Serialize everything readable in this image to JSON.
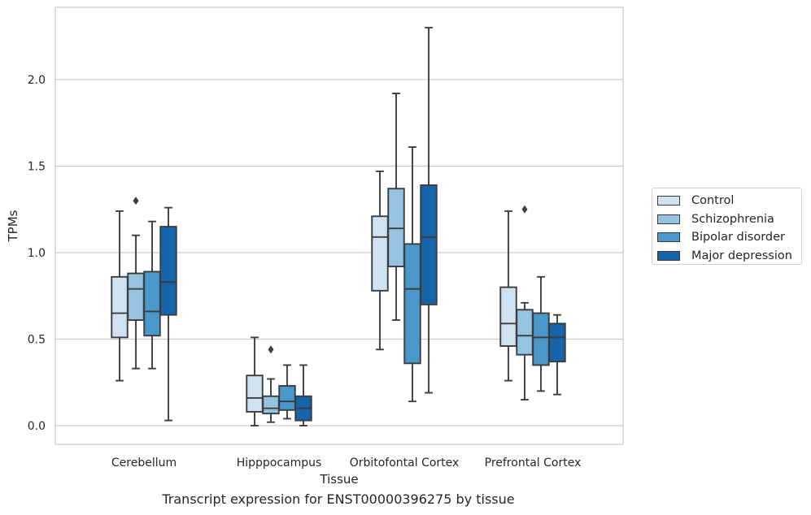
{
  "chart_data": {
    "type": "box",
    "xlabel": "Tissue",
    "ylabel": "TPMs",
    "caption": "Transcript expression for ENST00000396275 by tissue",
    "categories": [
      "Cerebellum",
      "Hipppocampus",
      "Orbitofontal Cortex",
      "Prefrontal Cortex"
    ],
    "ylim": [
      -0.11,
      2.42
    ],
    "yticks": [
      0.0,
      0.5,
      1.0,
      1.5,
      2.0
    ],
    "ytick_labels": [
      "0.0",
      "0.5",
      "1.0",
      "1.5",
      "2.0"
    ],
    "grid": "horizontal",
    "legend_position": "right",
    "series": [
      {
        "name": "Control",
        "color": "#d0e1f2",
        "boxes": [
          {
            "whislo": 0.26,
            "q1": 0.51,
            "med": 0.65,
            "q3": 0.86,
            "whishi": 1.24,
            "fliers": []
          },
          {
            "whislo": 0.0,
            "q1": 0.08,
            "med": 0.16,
            "q3": 0.29,
            "whishi": 0.51,
            "fliers": []
          },
          {
            "whislo": 0.44,
            "q1": 0.78,
            "med": 1.09,
            "q3": 1.21,
            "whishi": 1.47,
            "fliers": []
          },
          {
            "whislo": 0.26,
            "q1": 0.46,
            "med": 0.59,
            "q3": 0.8,
            "whishi": 1.24,
            "fliers": []
          }
        ]
      },
      {
        "name": "Schizophrenia",
        "color": "#94c4df",
        "boxes": [
          {
            "whislo": 0.33,
            "q1": 0.61,
            "med": 0.79,
            "q3": 0.88,
            "whishi": 1.1,
            "fliers": [
              1.3
            ]
          },
          {
            "whislo": 0.02,
            "q1": 0.07,
            "med": 0.1,
            "q3": 0.17,
            "whishi": 0.27,
            "fliers": [
              0.44
            ]
          },
          {
            "whislo": 0.61,
            "q1": 0.92,
            "med": 1.14,
            "q3": 1.37,
            "whishi": 1.92,
            "fliers": []
          },
          {
            "whislo": 0.15,
            "q1": 0.41,
            "med": 0.52,
            "q3": 0.67,
            "whishi": 0.71,
            "fliers": [
              1.25
            ]
          }
        ]
      },
      {
        "name": "Bipolar disorder",
        "color": "#4a98c9",
        "boxes": [
          {
            "whislo": 0.33,
            "q1": 0.52,
            "med": 0.66,
            "q3": 0.89,
            "whishi": 1.18,
            "fliers": []
          },
          {
            "whislo": 0.04,
            "q1": 0.09,
            "med": 0.14,
            "q3": 0.23,
            "whishi": 0.35,
            "fliers": []
          },
          {
            "whislo": 0.14,
            "q1": 0.36,
            "med": 0.79,
            "q3": 1.05,
            "whishi": 1.61,
            "fliers": []
          },
          {
            "whislo": 0.2,
            "q1": 0.35,
            "med": 0.51,
            "q3": 0.65,
            "whishi": 0.86,
            "fliers": []
          }
        ]
      },
      {
        "name": "Major depression",
        "color": "#1764ab",
        "boxes": [
          {
            "whislo": 0.03,
            "q1": 0.64,
            "med": 0.83,
            "q3": 1.15,
            "whishi": 1.26,
            "fliers": []
          },
          {
            "whislo": 0.0,
            "q1": 0.03,
            "med": 0.1,
            "q3": 0.17,
            "whishi": 0.35,
            "fliers": []
          },
          {
            "whislo": 0.19,
            "q1": 0.7,
            "med": 1.09,
            "q3": 1.39,
            "whishi": 2.3,
            "fliers": []
          },
          {
            "whislo": 0.18,
            "q1": 0.37,
            "med": 0.51,
            "q3": 0.59,
            "whishi": 0.64,
            "fliers": []
          }
        ]
      }
    ]
  }
}
